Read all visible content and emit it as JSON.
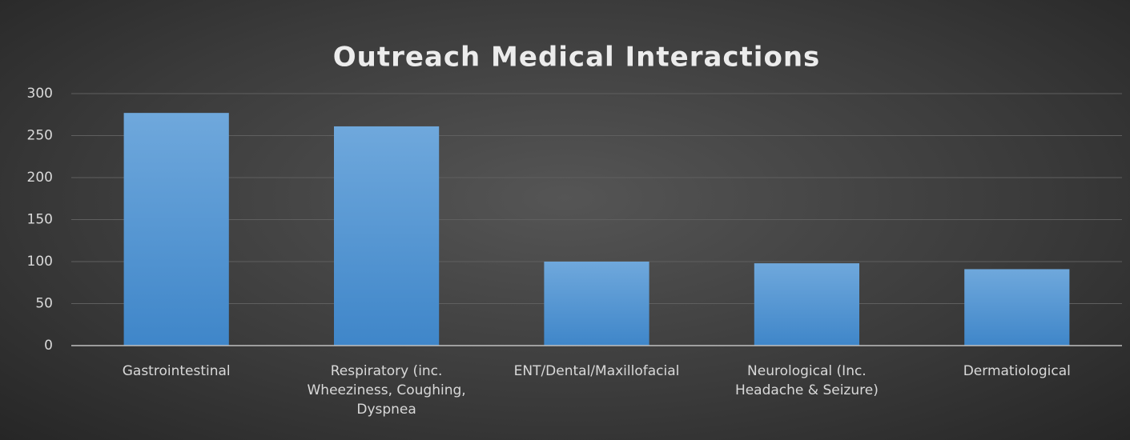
{
  "chart_data": {
    "type": "bar",
    "title": "Outreach Medical Interactions",
    "categories": [
      "Gastrointestinal",
      "Respiratory (inc. Wheeziness, Coughing, Dyspnea",
      "ENT/Dental/Maxillofacial",
      "Neurological (Inc. Headache & Seizure)",
      "Dermatiological"
    ],
    "values": [
      277,
      261,
      100,
      98,
      91
    ],
    "color": "#5b9bd5",
    "ylim": [
      0,
      300
    ],
    "yticks": [
      0,
      50,
      100,
      150,
      200,
      250,
      300
    ],
    "grid": true
  }
}
